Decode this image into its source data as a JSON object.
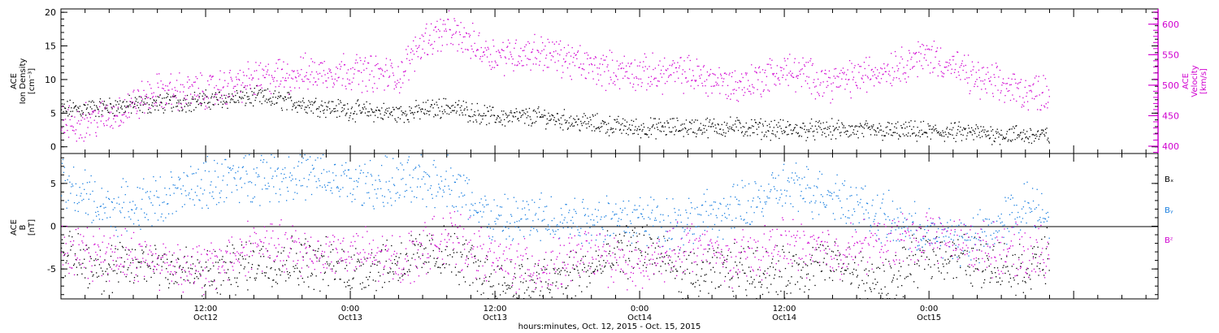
{
  "chart_data": [
    {
      "type": "scatter",
      "panel": "top",
      "ylabel_left": [
        "ACE",
        "Ion Density",
        "[cm⁻³]"
      ],
      "ylabel_right": [
        "ACE",
        "Velocity",
        "[km/s]"
      ],
      "left_axis": {
        "ylim": [
          -1,
          20.5
        ],
        "ticks": [
          "0",
          "5",
          "10",
          "15",
          "20"
        ]
      },
      "right_axis": {
        "ylim": [
          388,
          625
        ],
        "ticks": [
          "400",
          "450",
          "500",
          "550",
          "600"
        ]
      },
      "series": [
        {
          "color": "#000000",
          "axis": "left",
          "x": [
            0,
            4,
            8,
            12,
            16,
            20,
            24,
            28,
            32,
            36,
            40,
            44,
            48,
            52,
            56,
            60,
            64,
            68,
            72,
            76,
            80,
            82
          ],
          "y": [
            5.5,
            6,
            6.5,
            7,
            7.5,
            6.5,
            5.5,
            5,
            6,
            4.5,
            4.5,
            3.5,
            2.8,
            3,
            3,
            2.6,
            2.6,
            2.4,
            2.3,
            2.1,
            1.8,
            1.7
          ]
        },
        {
          "color": "#d000d0",
          "axis": "right",
          "x": [
            0,
            4,
            8,
            12,
            16,
            20,
            24,
            28,
            30,
            32,
            36,
            40,
            44,
            48,
            52,
            56,
            60,
            64,
            68,
            72,
            76,
            80,
            82
          ],
          "y": [
            435,
            450,
            490,
            490,
            510,
            520,
            525,
            515,
            575,
            590,
            550,
            555,
            530,
            520,
            520,
            500,
            525,
            505,
            525,
            550,
            510,
            490,
            490
          ]
        }
      ]
    },
    {
      "type": "scatter",
      "panel": "bottom",
      "ylabel": [
        "ACE",
        "B",
        "[nT]"
      ],
      "ylim": [
        -8.5,
        8.5
      ],
      "ticks": [
        "-5",
        "0",
        "5"
      ],
      "legend": [
        "Bₓ",
        "Bᵧ",
        "Bᶻ"
      ],
      "series": [
        {
          "name": "Bx",
          "color": "#000000",
          "x": [
            0,
            4,
            8,
            12,
            16,
            20,
            24,
            28,
            32,
            36,
            40,
            44,
            48,
            52,
            56,
            60,
            64,
            68,
            72,
            76,
            80,
            82
          ],
          "y": [
            -3,
            -5,
            -4,
            -6,
            -4,
            -4,
            -5,
            -4,
            -3,
            -6.5,
            -6.5,
            -5,
            -2,
            -6,
            -5,
            -5.5,
            -4,
            -7,
            -3,
            -4,
            -5,
            -3
          ]
        },
        {
          "name": "By",
          "color": "#1a7fe0",
          "x": [
            0,
            4,
            8,
            12,
            16,
            20,
            24,
            28,
            32,
            36,
            40,
            44,
            48,
            52,
            56,
            60,
            64,
            68,
            72,
            76,
            80,
            82
          ],
          "y": [
            5,
            2,
            3,
            5,
            6,
            6,
            5,
            5,
            5.5,
            0.5,
            1,
            1,
            1,
            0.5,
            2,
            4.5,
            4,
            1,
            -1,
            -1.5,
            2.5,
            2
          ]
        },
        {
          "name": "Bz",
          "color": "#d000d0",
          "x": [
            0,
            4,
            8,
            12,
            16,
            20,
            24,
            28,
            32,
            36,
            40,
            44,
            48,
            52,
            56,
            60,
            64,
            68,
            72,
            76,
            80,
            82
          ],
          "y": [
            -3,
            -3,
            -4,
            -5,
            -2,
            -3,
            -3,
            -4,
            -1,
            -4,
            -5,
            -3,
            -5,
            -2,
            -4,
            -2,
            -3,
            -2,
            -1,
            -2.5,
            -3,
            -3
          ]
        }
      ]
    }
  ],
  "x_axis": {
    "range": [
      0,
      91
    ],
    "ticks": [
      {
        "time": "12:00",
        "date": "Oct12",
        "hour": 12
      },
      {
        "time": "0:00",
        "date": "Oct13",
        "hour": 24
      },
      {
        "time": "12:00",
        "date": "Oct13",
        "hour": 36
      },
      {
        "time": "0:00",
        "date": "Oct14",
        "hour": 48
      },
      {
        "time": "12:00",
        "date": "Oct14",
        "hour": 60
      },
      {
        "time": "0:00",
        "date": "Oct15",
        "hour": 72
      }
    ],
    "label": "hours:minutes, Oct. 12, 2015 - Oct. 15, 2015"
  }
}
